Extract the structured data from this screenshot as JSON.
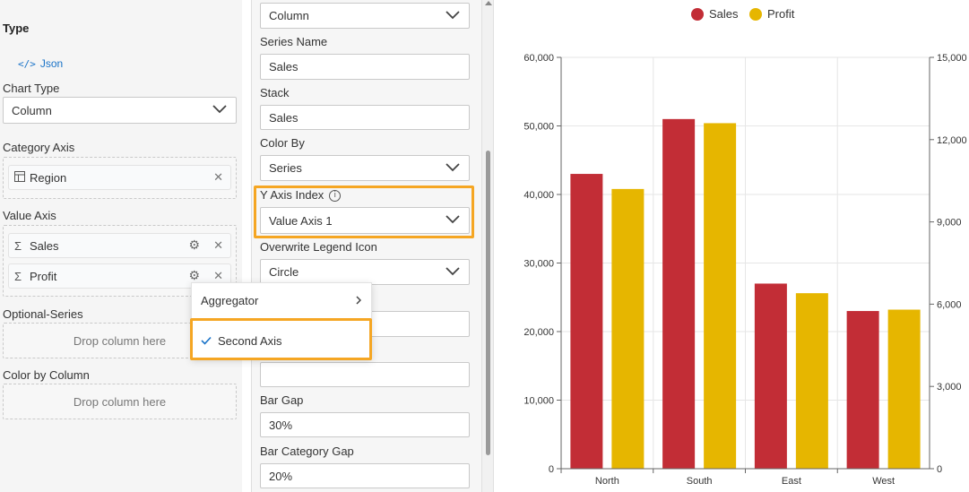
{
  "left": {
    "type_title": "Type",
    "json_icon": "code-icon",
    "json_label": "Json",
    "chart_type_label": "Chart Type",
    "chart_type_value": "Column",
    "category_axis_label": "Category Axis",
    "category_item": "Region",
    "value_axis_label": "Value Axis",
    "value_items": [
      "Sales",
      "Profit"
    ],
    "optional_series_label": "Optional-Series",
    "optional_series_placeholder": "Drop column here",
    "color_by_label": "Color by Column",
    "color_by_placeholder": "Drop column here"
  },
  "middle": {
    "series_type_value": "Column",
    "series_name_label": "Series Name",
    "series_name_value": "Sales",
    "stack_label": "Stack",
    "stack_value": "Sales",
    "color_by_label": "Color By",
    "color_by_value": "Series",
    "y_axis_index_label": "Y Axis Index",
    "y_axis_index_value": "Value Axis 1",
    "overwrite_legend_label": "Overwrite Legend Icon",
    "overwrite_legend_value": "Circle",
    "field_a_value": "",
    "field_b_value": "",
    "bar_gap_label": "Bar Gap",
    "bar_gap_value": "30%",
    "bar_category_gap_label": "Bar Category Gap",
    "bar_category_gap_value": "20%"
  },
  "context_menu": {
    "aggregator_label": "Aggregator",
    "second_axis_label": "Second Axis"
  },
  "colors": {
    "sales": "#c22d36",
    "profit": "#e6b600",
    "highlight": "#f5a623",
    "link": "#1a73c8"
  },
  "chart_data": {
    "type": "bar",
    "categories": [
      "North",
      "South",
      "East",
      "West"
    ],
    "series": [
      {
        "name": "Sales",
        "axis": "left",
        "values": [
          43000,
          51000,
          27000,
          23000
        ]
      },
      {
        "name": "Profit",
        "axis": "right",
        "values": [
          10200,
          12600,
          6400,
          5800
        ]
      }
    ],
    "left_axis": {
      "min": 0,
      "max": 60000,
      "ticks": [
        "0",
        "10,000",
        "20,000",
        "30,000",
        "40,000",
        "50,000",
        "60,000"
      ]
    },
    "right_axis": {
      "min": 0,
      "max": 15000,
      "ticks": [
        "0",
        "3,000",
        "6,000",
        "9,000",
        "12,000",
        "15,000"
      ]
    },
    "legend": "top-center",
    "grid": true
  }
}
